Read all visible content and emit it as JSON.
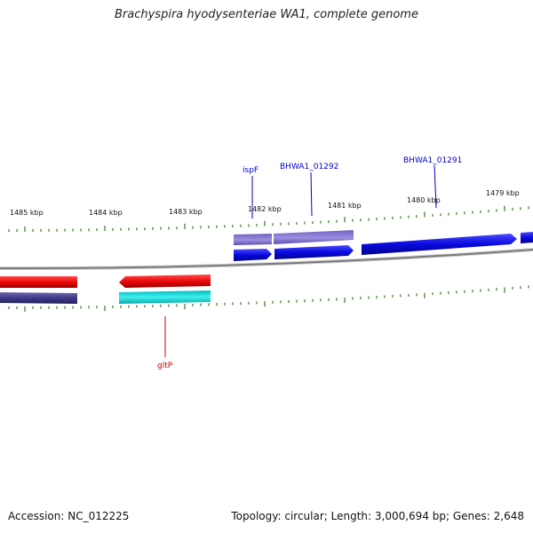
{
  "title": "Brachyspira hyodysenteriae WA1, complete genome",
  "footer": {
    "accession": "Accession: NC_012225",
    "topology": "Topology: circular; Length: 3,000,694 bp; Genes: 2,648"
  },
  "kbp_labels": [
    "1485 kbp",
    "1484 kbp",
    "1483 kbp",
    "1482 kbp",
    "1481 kbp",
    "1480 kbp",
    "1479 kbp"
  ],
  "gene_labels": [
    {
      "name": "ispF",
      "color": "#0000cc"
    },
    {
      "name": "BHWA1_01292",
      "color": "#0000cc"
    },
    {
      "name": "BHWA1_01291",
      "color": "#0000cc"
    },
    {
      "name": "gltP",
      "color": "#cc0000"
    }
  ],
  "colors": {
    "forward_cds": "#0a0adf",
    "forward_gene": "#7566c8",
    "reverse_cds": "#ee0a0a",
    "reverse_gene_dark": "#3e3a86",
    "reverse_gene_cyan": "#18dede",
    "backbone": "#8a8a8a",
    "tick": "#2e7d1a"
  }
}
